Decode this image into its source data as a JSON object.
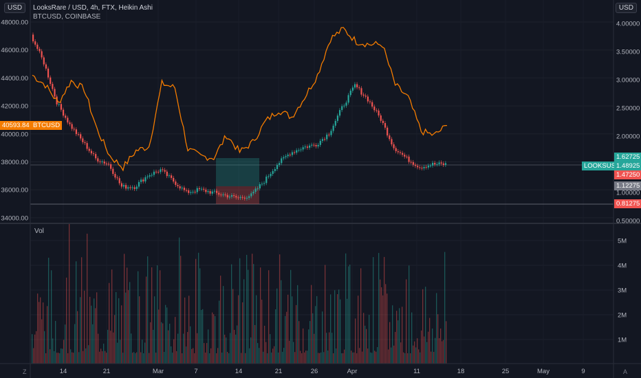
{
  "header": {
    "title": "LooksRare / USD, 4h, FTX, Heikin Ashi",
    "compare": "BTCUSD, COINBASE",
    "currency_left": "USD",
    "currency_right": "USD"
  },
  "left_scale": [
    "48000.00",
    "46000.00",
    "44000.00",
    "42000.00",
    "40000.00",
    "38000.00",
    "36000.00",
    "34000.00"
  ],
  "right_scale": [
    "4.00000",
    "3.50000",
    "3.00000",
    "2.50000",
    "2.00000",
    "1.50000",
    "1.00000",
    "0.50000"
  ],
  "vol_scale": [
    "5M",
    "4M",
    "3M",
    "2M",
    "1M"
  ],
  "vol_label": "Vol",
  "x_labels": [
    "14",
    "21",
    "Mar",
    "7",
    "14",
    "21",
    "26",
    "Apr",
    "11",
    "18",
    "25",
    "May",
    "9"
  ],
  "price_tags": {
    "btc_value": "40593.84",
    "btc_name": "BTCUSD",
    "looks_name": "LOOKSUSD",
    "looks_value": "1.48925",
    "target": "1.62725",
    "entry": "1.47250",
    "gray": "1.12275",
    "stop": "0.81275"
  },
  "corner": {
    "left": "Z",
    "right": "A"
  },
  "colors": {
    "btc": "#f57c00",
    "up": "#26a69a",
    "down": "#ef5350",
    "bg": "#131722"
  },
  "chart_data": {
    "type": "line",
    "title": "LooksRare / USD, 4h, FTX, Heikin Ashi",
    "series": [
      {
        "name": "BTCUSD",
        "axis": "left",
        "x": [
          "Feb 9",
          "Feb 11",
          "Feb 13",
          "Feb 15",
          "Feb 17",
          "Feb 19",
          "Feb 21",
          "Feb 23",
          "Feb 25",
          "Feb 27",
          "Mar 1",
          "Mar 3",
          "Mar 5",
          "Mar 7",
          "Mar 9",
          "Mar 11",
          "Mar 13",
          "Mar 15",
          "Mar 17",
          "Mar 19",
          "Mar 21",
          "Mar 23",
          "Mar 25",
          "Mar 27",
          "Mar 29",
          "Mar 31",
          "Apr 2",
          "Apr 4",
          "Apr 6",
          "Apr 8",
          "Apr 10",
          "Apr 12",
          "Apr 14"
        ],
        "values": [
          44200,
          43500,
          42200,
          43800,
          43200,
          40300,
          38400,
          37600,
          38800,
          39100,
          43600,
          43300,
          38900,
          38400,
          38300,
          39900,
          38700,
          39400,
          40900,
          41700,
          41200,
          42600,
          44200,
          46800,
          47500,
          46600,
          46400,
          46400,
          43500,
          42600,
          40200,
          39900,
          40600
        ]
      },
      {
        "name": "LOOKSUSD",
        "axis": "right",
        "x": [
          "Feb 9",
          "Feb 11",
          "Feb 13",
          "Feb 15",
          "Feb 17",
          "Feb 19",
          "Feb 21",
          "Feb 23",
          "Feb 25",
          "Feb 27",
          "Mar 1",
          "Mar 3",
          "Mar 5",
          "Mar 7",
          "Mar 9",
          "Mar 11",
          "Mar 13",
          "Mar 15",
          "Mar 17",
          "Mar 19",
          "Mar 21",
          "Mar 23",
          "Mar 25",
          "Mar 27",
          "Mar 29",
          "Mar 31",
          "Apr 2",
          "Apr 4",
          "Apr 6",
          "Apr 8",
          "Apr 10",
          "Apr 12",
          "Apr 14"
        ],
        "values": [
          3.8,
          3.3,
          2.6,
          2.2,
          1.9,
          1.6,
          1.5,
          1.1,
          1.1,
          1.3,
          1.4,
          1.2,
          1.0,
          1.05,
          1.0,
          0.95,
          0.9,
          0.95,
          1.2,
          1.5,
          1.7,
          1.8,
          1.85,
          2.05,
          2.5,
          2.9,
          2.65,
          2.3,
          1.8,
          1.6,
          1.45,
          1.5,
          1.5
        ]
      }
    ],
    "volume_max": "5.5M",
    "x_ticks": [
      "14",
      "21",
      "Mar",
      "7",
      "14",
      "21",
      "26",
      "Apr",
      "11",
      "18",
      "25",
      "May",
      "9"
    ],
    "left_ylim": [
      34000,
      48000
    ],
    "right_ylim": [
      0.5,
      4.0
    ],
    "grid": true
  }
}
